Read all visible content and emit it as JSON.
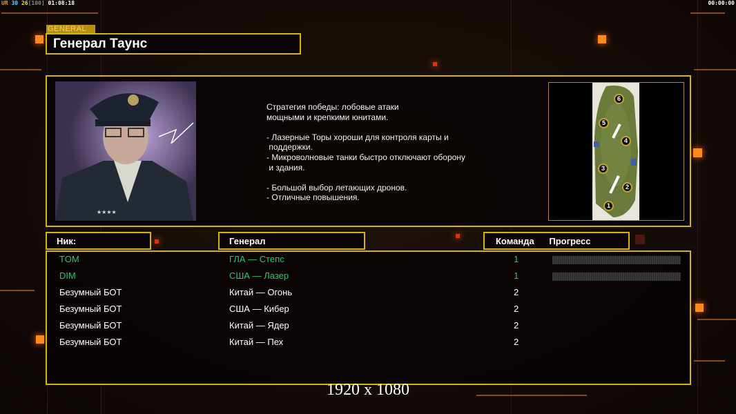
{
  "hud": {
    "left_prefix": "UR",
    "left_a": "30",
    "left_b": "26",
    "left_c": "[100]",
    "left_time": "01:08:18",
    "right_time": "00:00:00"
  },
  "general": {
    "section_label": "GENERAL",
    "name": "Генерал Таунс",
    "description": "Стратегия победы: лобовые атаки\nмощными и крепкими юнитами.\n\n- Лазерные Торы хороши для контроля карты и\n поддержки.\n- Микроволновые танки быстро отключают оборону\n и здания.\n\n- Большой выбор летающих дронов.\n- Отличные повышения."
  },
  "map": {
    "start_positions": [
      "1",
      "2",
      "3",
      "4",
      "5",
      "6"
    ]
  },
  "table": {
    "headers": {
      "nick": "Ник:",
      "general": "Генерал",
      "team": "Команда",
      "progress": "Прогресс"
    },
    "rows": [
      {
        "nick": "TOM",
        "general": "ГЛА — Степс",
        "team": "1",
        "human": true,
        "progress": 0
      },
      {
        "nick": "DIM",
        "general": "США — Лазер",
        "team": "1",
        "human": true,
        "progress": 0
      },
      {
        "nick": "Безумный БОТ",
        "general": "Китай — Огонь",
        "team": "2",
        "human": false
      },
      {
        "nick": "Безумный БОТ",
        "general": "США — Кибер",
        "team": "2",
        "human": false
      },
      {
        "nick": "Безумный БОТ",
        "general": "Китай — Ядер",
        "team": "2",
        "human": false
      },
      {
        "nick": "Безумный БОТ",
        "general": "Китай — Пех",
        "team": "2",
        "human": false
      }
    ]
  },
  "resolution": "1920 x 1080",
  "colors": {
    "accent": "#d7b40c",
    "human": "#2ec86a",
    "bot": "#ffffff",
    "orange": "#ff8a1c"
  }
}
